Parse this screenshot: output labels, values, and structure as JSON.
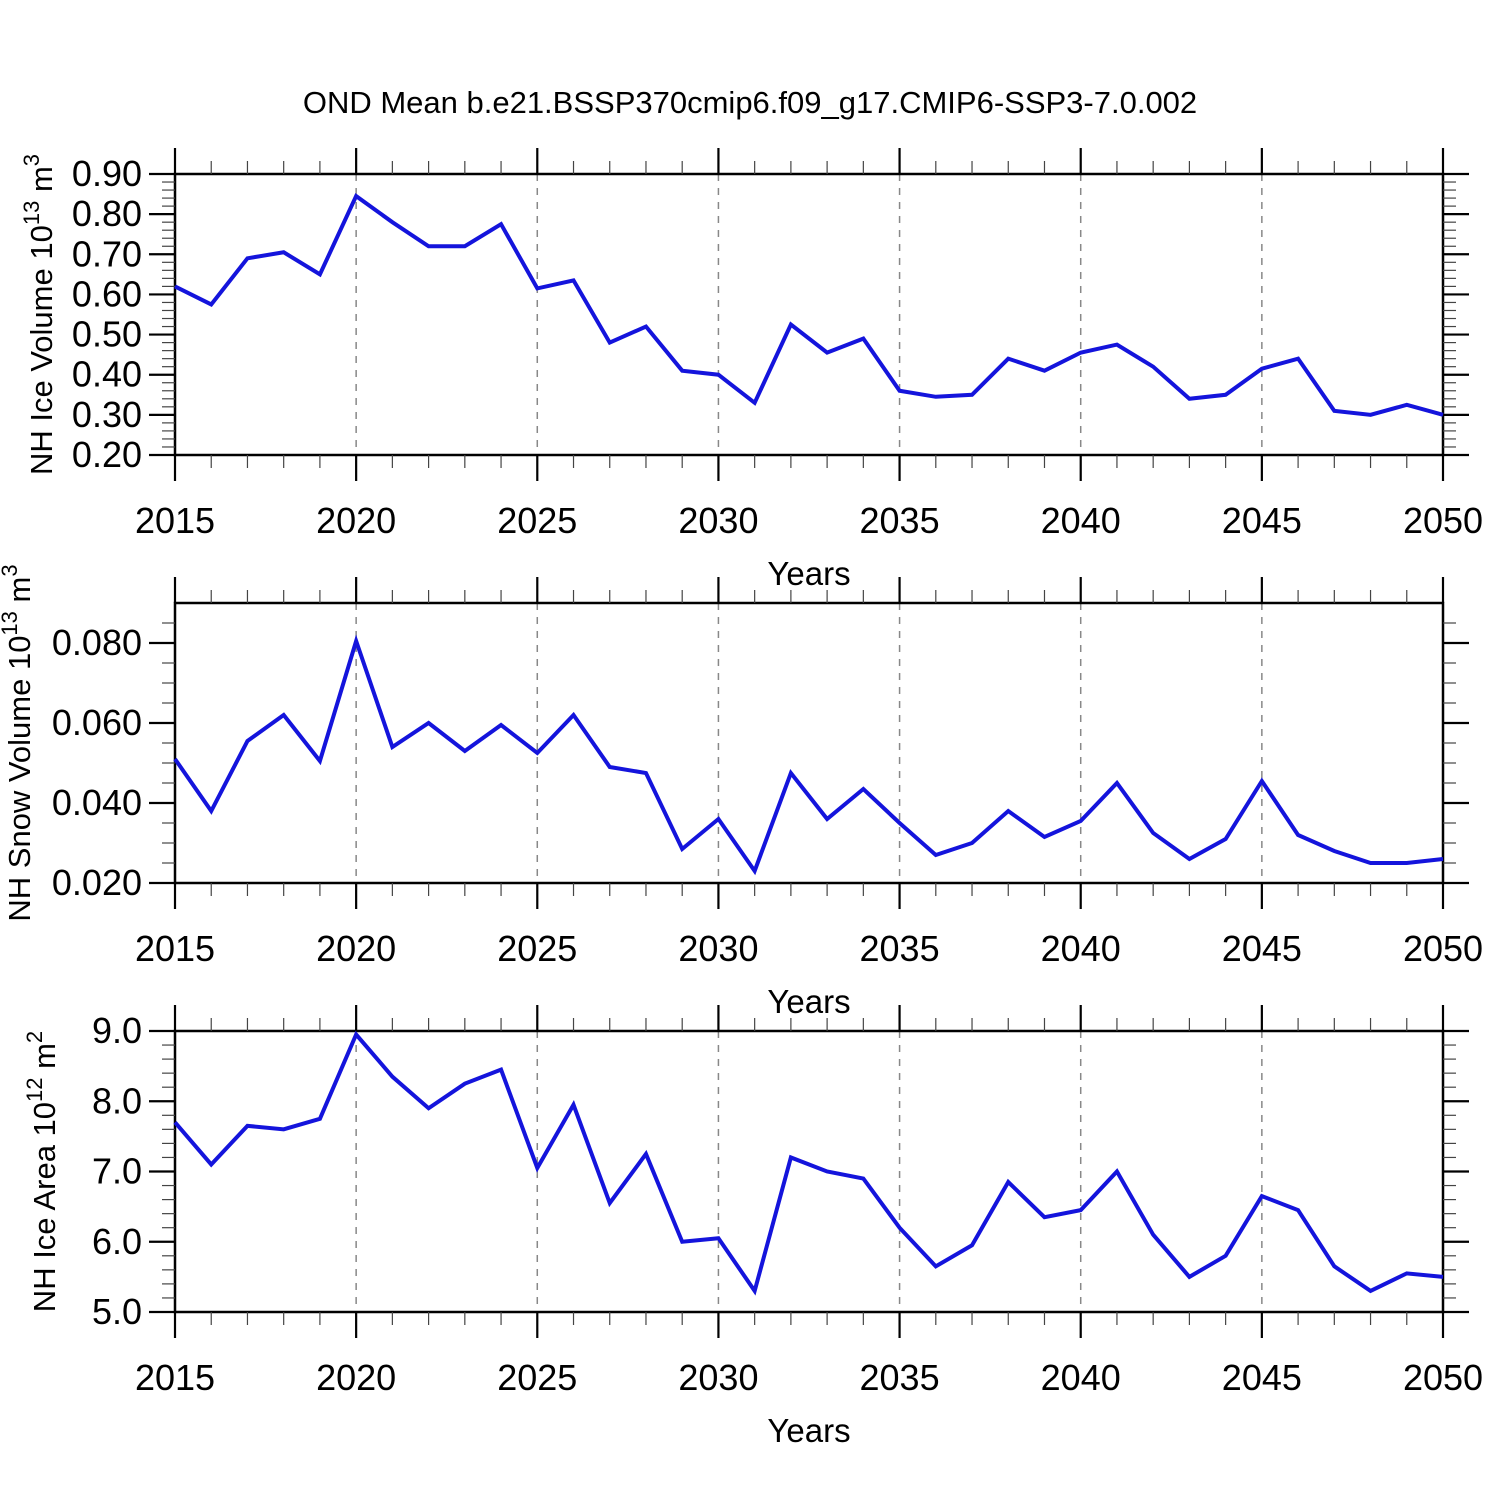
{
  "title": "OND Mean b.e21.BSSP370cmip6.f09_g17.CMIP6-SSP3-7.0.002",
  "colors": {
    "line": "#1414dc",
    "frame": "#000000",
    "minor_tick": "#444444",
    "grid": "#888888",
    "text": "#000000",
    "background": "#ffffff"
  },
  "x_axis": {
    "label": "Years",
    "range": [
      2015,
      2050
    ],
    "tick_values": [
      2015,
      2020,
      2025,
      2030,
      2035,
      2040,
      2045,
      2050
    ],
    "tick_labels": [
      "2015",
      "2020",
      "2025",
      "2030",
      "2035",
      "2040",
      "2045",
      "2050"
    ],
    "minor_step": 1,
    "grid_years": [
      2020,
      2025,
      2030,
      2035,
      2040,
      2045
    ]
  },
  "chart_data": [
    {
      "type": "line",
      "name": "NH Ice Volume",
      "xlabel": "Years",
      "ylabel": {
        "base": "NH Ice Volume 10",
        "base_exp": "13",
        "unit": "m",
        "unit_exp": "3"
      },
      "ylim": [
        0.2,
        0.9
      ],
      "ytick_values": [
        0.2,
        0.3,
        0.4,
        0.5,
        0.6,
        0.7,
        0.8,
        0.9
      ],
      "ytick_labels": [
        "0.20",
        "0.30",
        "0.40",
        "0.50",
        "0.60",
        "0.70",
        "0.80",
        "0.90"
      ],
      "ymajor_step": 0.1,
      "yminor_step": 0.02,
      "grid": "vertical-dashed",
      "legend": "none",
      "x": [
        2015,
        2016,
        2017,
        2018,
        2019,
        2020,
        2021,
        2022,
        2023,
        2024,
        2025,
        2026,
        2027,
        2028,
        2029,
        2030,
        2031,
        2032,
        2033,
        2034,
        2035,
        2036,
        2037,
        2038,
        2039,
        2040,
        2041,
        2042,
        2043,
        2044,
        2045,
        2046,
        2047,
        2048,
        2049,
        2050
      ],
      "values": [
        0.62,
        0.575,
        0.69,
        0.705,
        0.65,
        0.845,
        0.78,
        0.72,
        0.72,
        0.775,
        0.615,
        0.635,
        0.48,
        0.52,
        0.41,
        0.4,
        0.33,
        0.525,
        0.455,
        0.49,
        0.36,
        0.345,
        0.35,
        0.44,
        0.41,
        0.455,
        0.475,
        0.42,
        0.34,
        0.35,
        0.415,
        0.44,
        0.31,
        0.3,
        0.325,
        0.3
      ]
    },
    {
      "type": "line",
      "name": "NH Snow Volume",
      "xlabel": "Years",
      "ylabel": {
        "base": "NH Snow Volume 10",
        "base_exp": "13",
        "unit": "m",
        "unit_exp": "3"
      },
      "ylim": [
        0.02,
        0.09
      ],
      "ytick_values": [
        0.02,
        0.04,
        0.06,
        0.08
      ],
      "ytick_labels": [
        "0.020",
        "0.040",
        "0.060",
        "0.080"
      ],
      "ymajor_step": 0.02,
      "yminor_step": 0.005,
      "grid": "vertical-dashed",
      "legend": "none",
      "x": [
        2015,
        2016,
        2017,
        2018,
        2019,
        2020,
        2021,
        2022,
        2023,
        2024,
        2025,
        2026,
        2027,
        2028,
        2029,
        2030,
        2031,
        2032,
        2033,
        2034,
        2035,
        2036,
        2037,
        2038,
        2039,
        2040,
        2041,
        2042,
        2043,
        2044,
        2045,
        2046,
        2047,
        2048,
        2049,
        2050
      ],
      "values": [
        0.051,
        0.038,
        0.0555,
        0.062,
        0.0505,
        0.0805,
        0.054,
        0.06,
        0.053,
        0.0595,
        0.0525,
        0.062,
        0.049,
        0.0475,
        0.0285,
        0.036,
        0.023,
        0.0475,
        0.036,
        0.0435,
        0.035,
        0.027,
        0.03,
        0.038,
        0.0315,
        0.0355,
        0.045,
        0.0325,
        0.026,
        0.031,
        0.0455,
        0.032,
        0.028,
        0.025,
        0.025,
        0.026
      ]
    },
    {
      "type": "line",
      "name": "NH Ice Area",
      "xlabel": "Years",
      "ylabel": {
        "base": "NH Ice Area 10",
        "base_exp": "12",
        "unit": "m",
        "unit_exp": "2"
      },
      "ylim": [
        5.0,
        9.0
      ],
      "ytick_values": [
        5.0,
        6.0,
        7.0,
        8.0,
        9.0
      ],
      "ytick_labels": [
        "5.0",
        "6.0",
        "7.0",
        "8.0",
        "9.0"
      ],
      "ymajor_step": 1.0,
      "yminor_step": 0.2,
      "grid": "vertical-dashed",
      "legend": "none",
      "x": [
        2015,
        2016,
        2017,
        2018,
        2019,
        2020,
        2021,
        2022,
        2023,
        2024,
        2025,
        2026,
        2027,
        2028,
        2029,
        2030,
        2031,
        2032,
        2033,
        2034,
        2035,
        2036,
        2037,
        2038,
        2039,
        2040,
        2041,
        2042,
        2043,
        2044,
        2045,
        2046,
        2047,
        2048,
        2049,
        2050
      ],
      "values": [
        7.7,
        7.1,
        7.65,
        7.6,
        7.75,
        8.95,
        8.35,
        7.9,
        8.25,
        8.45,
        7.05,
        7.95,
        6.55,
        7.25,
        6.0,
        6.05,
        5.3,
        7.2,
        7.0,
        6.9,
        6.2,
        5.65,
        5.95,
        6.85,
        6.35,
        6.45,
        7.0,
        6.1,
        5.5,
        5.8,
        6.65,
        6.45,
        5.65,
        5.3,
        5.55,
        5.5
      ]
    }
  ]
}
